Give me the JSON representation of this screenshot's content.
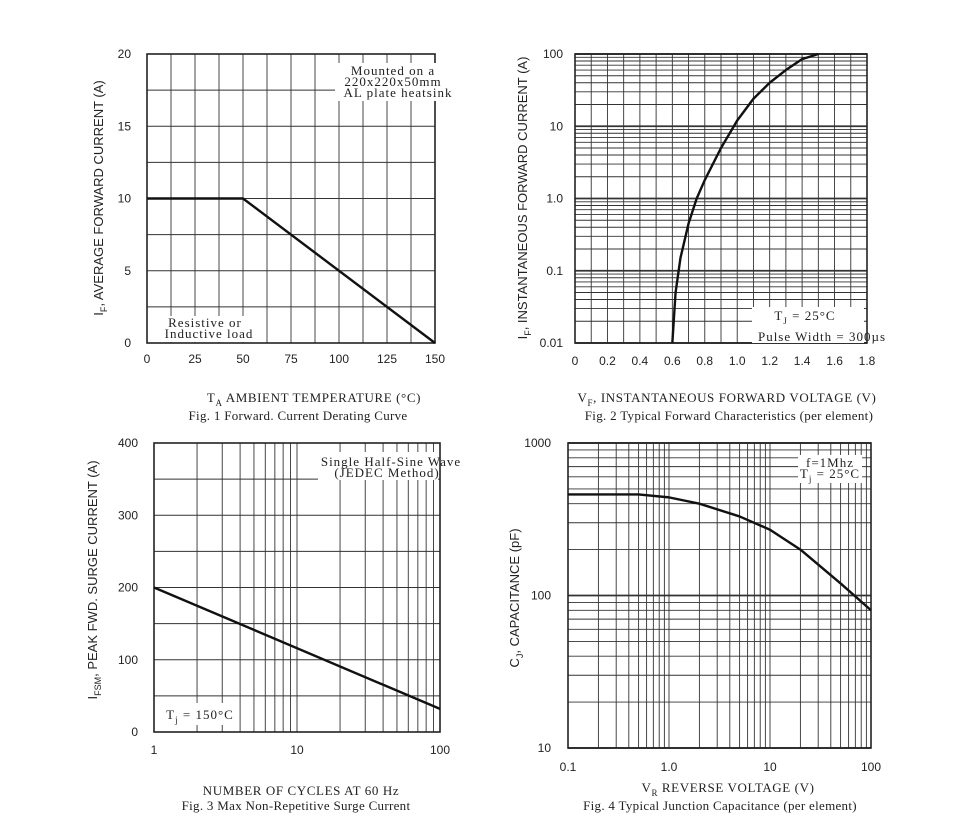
{
  "chart_data": [
    {
      "type": "line",
      "ylabel": "I F, AVERAGE FORWARD CURRENT (A)",
      "xlabel": "T A, AMBIENT TEMPERATURE (°C)",
      "caption": "Fig. 1 Forward. Current Derating Curve",
      "xlim": [
        0,
        150
      ],
      "ylim": [
        0,
        20
      ],
      "x_ticks": [
        "0",
        "25",
        "50",
        "75",
        "100",
        "125",
        "150"
      ],
      "y_ticks": [
        "0",
        "5",
        "10",
        "15",
        "20"
      ],
      "annotations": [
        "Mounted on a",
        "220x220x50mm",
        "AL plate heatsink",
        "Resistive or",
        "Inductive load"
      ],
      "series": [
        {
          "x": [
            0,
            50,
            150
          ],
          "y": [
            10,
            10,
            0
          ]
        }
      ]
    },
    {
      "type": "line",
      "ylabel": "I F, INSTANTANEOUS FORWARD CURRENT (A)",
      "xlabel": "V F, INSTANTANEOUS FORWARD VOLTAGE (V)",
      "caption": "Fig. 2 Typical Forward Characteristics (per element)",
      "xlim": [
        0,
        1.8
      ],
      "ylim": [
        0.01,
        100
      ],
      "y_scale": "log",
      "x_ticks": [
        "0",
        "0.2",
        "0.4",
        "0.6",
        "0.8",
        "1.0",
        "1.2",
        "1.4",
        "1.6",
        "1.8"
      ],
      "y_ticks": [
        "0.01",
        "0.1",
        "1.0",
        "10",
        "100"
      ],
      "annotations": [
        "T J = 25°C",
        "Pulse Width = 300µs"
      ],
      "series": [
        {
          "x": [
            0.6,
            0.62,
            0.65,
            0.7,
            0.75,
            0.8,
            0.9,
            1.0,
            1.1,
            1.2,
            1.3,
            1.4,
            1.5
          ],
          "y": [
            0.01,
            0.05,
            0.15,
            0.45,
            1.0,
            1.8,
            5.0,
            12,
            24,
            40,
            60,
            85,
            100
          ]
        }
      ]
    },
    {
      "type": "line",
      "ylabel": "I FSM, PEAK FWD. SURGE CURRENT (A)",
      "xlabel": "NUMBER OF CYCLES AT 60 Hz",
      "caption": "Fig. 3 Max Non-Repetitive Surge Current",
      "xlim": [
        1,
        100
      ],
      "ylim": [
        0,
        400
      ],
      "x_scale": "log",
      "x_ticks": [
        "1",
        "10",
        "100"
      ],
      "y_ticks": [
        "0",
        "100",
        "200",
        "300",
        "400"
      ],
      "annotations": [
        "Single Half-Sine Wave",
        "(JEDEC Method)",
        "T j = 150°C"
      ],
      "series": [
        {
          "x": [
            1,
            100
          ],
          "y": [
            200,
            32
          ]
        }
      ]
    },
    {
      "type": "line",
      "ylabel": "C J, CAPACITANCE (pF)",
      "xlabel": "V R, REVERSE VOLTAGE (V)",
      "caption": "Fig. 4 Typical Junction Capacitance (per element)",
      "xlim": [
        0.1,
        100
      ],
      "ylim": [
        10,
        1000
      ],
      "x_scale": "log",
      "y_scale": "log",
      "x_ticks": [
        "0.1",
        "1.0",
        "10",
        "100"
      ],
      "y_ticks": [
        "10",
        "100",
        "1000"
      ],
      "annotations": [
        "f=1Mhz",
        "T j = 25°C"
      ],
      "series": [
        {
          "x": [
            0.1,
            0.5,
            1,
            2,
            5,
            10,
            20,
            50,
            100
          ],
          "y": [
            460,
            460,
            440,
            400,
            330,
            270,
            200,
            120,
            80
          ]
        }
      ]
    }
  ]
}
